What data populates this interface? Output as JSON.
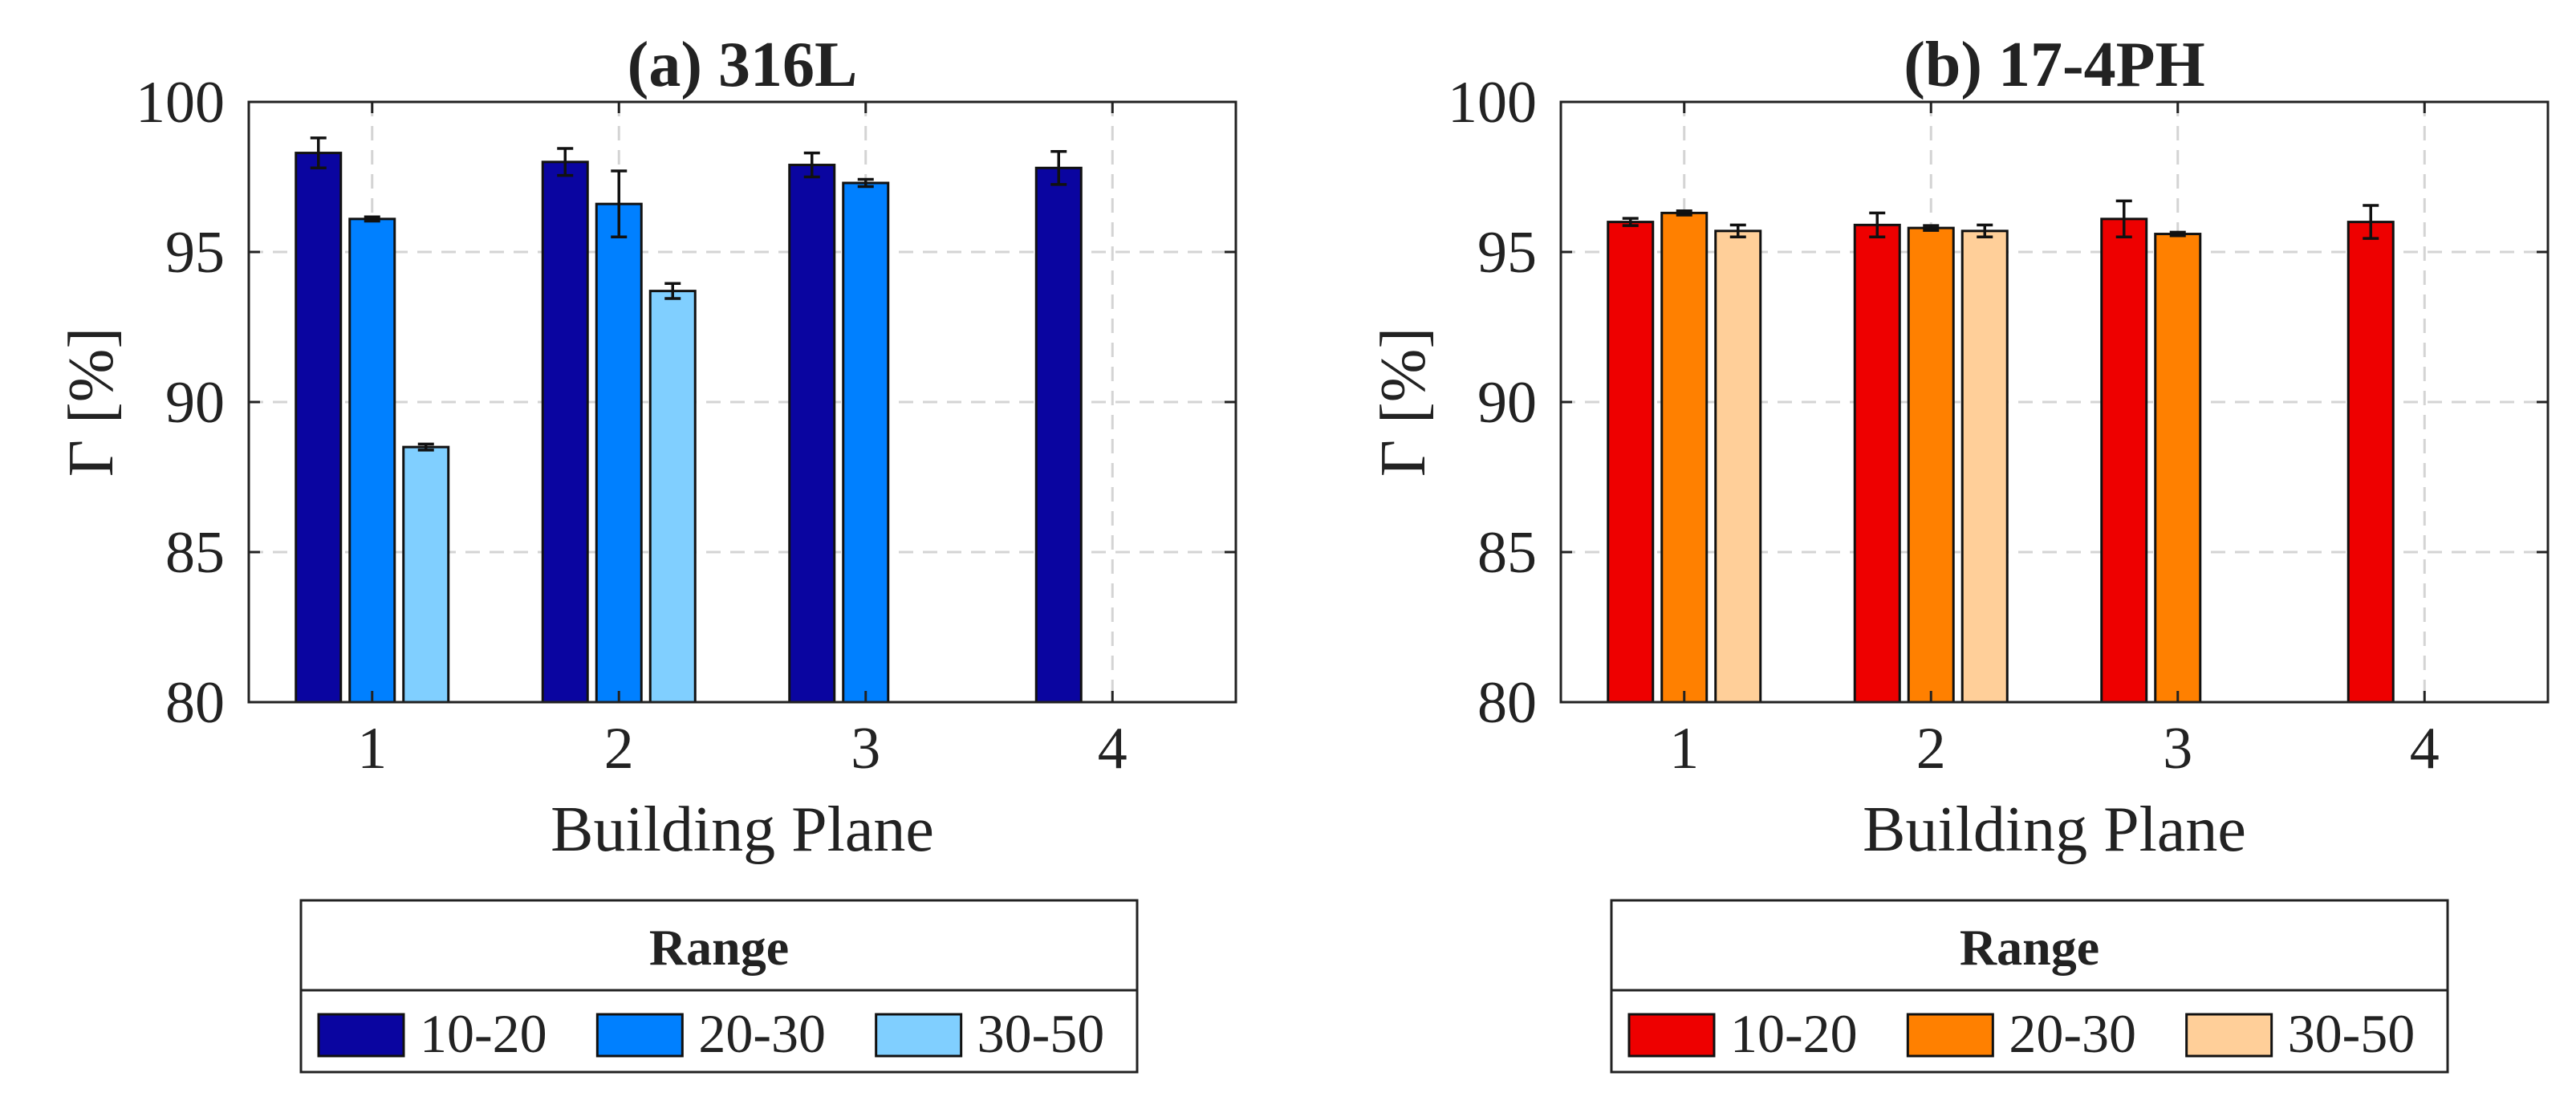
{
  "chart_data": [
    {
      "type": "bar",
      "title": "(a) 316L",
      "xlabel": "Building Plane",
      "ylabel": "Γ [%]",
      "categories": [
        "1",
        "2",
        "3",
        "4"
      ],
      "ylim": [
        80,
        100
      ],
      "yticks": [
        80,
        85,
        90,
        95,
        100
      ],
      "grid": true,
      "legend": {
        "title": "Range",
        "placement": "bottom"
      },
      "series": [
        {
          "name": "10-20",
          "color": "#0a05a0",
          "values": [
            98.3,
            98.0,
            97.9,
            97.8
          ],
          "errors": [
            0.5,
            0.45,
            0.4,
            0.55
          ]
        },
        {
          "name": "20-30",
          "color": "#0080ff",
          "values": [
            96.1,
            96.6,
            97.3,
            null
          ],
          "errors": [
            0.07,
            1.1,
            0.12,
            null
          ]
        },
        {
          "name": "30-50",
          "color": "#80cfff",
          "values": [
            88.5,
            93.7,
            null,
            null
          ],
          "errors": [
            0.1,
            0.25,
            null,
            null
          ]
        }
      ]
    },
    {
      "type": "bar",
      "title": "(b) 17-4PH",
      "xlabel": "Building Plane",
      "ylabel": "Γ [%]",
      "categories": [
        "1",
        "2",
        "3",
        "4"
      ],
      "ylim": [
        80,
        100
      ],
      "yticks": [
        80,
        85,
        90,
        95,
        100
      ],
      "grid": true,
      "legend": {
        "title": "Range",
        "placement": "bottom"
      },
      "series": [
        {
          "name": "10-20",
          "color": "#ee0000",
          "values": [
            96.0,
            95.9,
            96.1,
            96.0
          ],
          "errors": [
            0.12,
            0.4,
            0.6,
            0.55
          ]
        },
        {
          "name": "20-30",
          "color": "#ff8000",
          "values": [
            96.3,
            95.8,
            95.6,
            null
          ],
          "errors": [
            0.07,
            0.08,
            0.06,
            null
          ]
        },
        {
          "name": "30-50",
          "color": "#ffcf99",
          "values": [
            95.7,
            95.7,
            null,
            null
          ],
          "errors": [
            0.2,
            0.2,
            null,
            null
          ]
        }
      ]
    }
  ]
}
